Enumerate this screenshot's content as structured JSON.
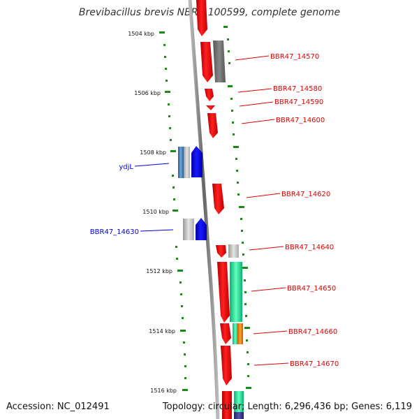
{
  "title": "Brevibacillus brevis NBRC 100599, complete genome",
  "footer": {
    "accession": "Accession: NC_012491",
    "summary": "Topology: circular; Length: 6,296,436 bp; Genes: 6,119"
  },
  "ruler": [
    "1504 kbp",
    "1506 kbp",
    "1508 kbp",
    "1510 kbp",
    "1512 kbp",
    "1514 kbp",
    "1516 kbp"
  ],
  "genes_right": [
    "BBR47_14570",
    "BBR47_14580",
    "BBR47_14590",
    "BBR47_14600",
    "BBR47_14620",
    "BBR47_14640",
    "BBR47_14650",
    "BBR47_14660",
    "BBR47_14670"
  ],
  "genes_left": [
    "ydjL",
    "BBR47_14630"
  ],
  "colors": {
    "forward": "#e00000",
    "reverse": "#0000ee",
    "tick": "#1a8a1a",
    "backbone": "#888888"
  }
}
